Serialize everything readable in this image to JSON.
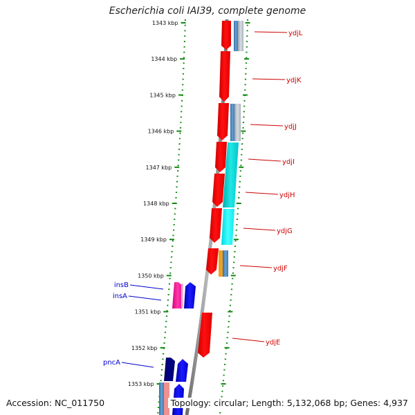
{
  "title": "Escherichia coli IAI39, complete genome",
  "accession": "Accession: NC_011750",
  "stats": "Topology: circular; Length: 5,132,068 bp; Genes: 4,937",
  "colors": {
    "forward_label": "#cc0000",
    "reverse_label": "#0000cc",
    "tick": "#118811",
    "backbone": "#808080"
  },
  "kbp_labels": [
    "1343 kbp",
    "1344 kbp",
    "1345 kbp",
    "1346 kbp",
    "1347 kbp",
    "1348 kbp",
    "1349 kbp",
    "1350 kbp",
    "1351 kbp",
    "1352 kbp",
    "1353 kbp"
  ],
  "genes_right": [
    {
      "name": "ydjL"
    },
    {
      "name": "ydjK"
    },
    {
      "name": "ydjJ"
    },
    {
      "name": "ydjI"
    },
    {
      "name": "ydjH"
    },
    {
      "name": "ydjG"
    },
    {
      "name": "ydjF"
    },
    {
      "name": "ydjE"
    }
  ],
  "genes_left": [
    {
      "name": "insB"
    },
    {
      "name": "insA"
    },
    {
      "name": "pncA"
    }
  ]
}
